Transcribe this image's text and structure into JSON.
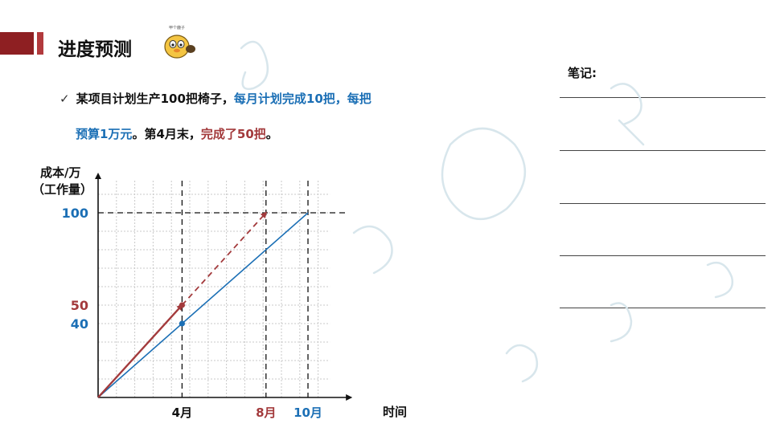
{
  "header": {
    "title": "进度预测"
  },
  "mascot": {
    "caption": "甲个鹿子"
  },
  "bullet": {
    "part1": "某项目计划生产100把椅子，",
    "part2": "每月计划完成10把，每把",
    "part3": "预算1万元",
    "part4": "。第4月末，",
    "part5": "完成了50把",
    "part6": "。"
  },
  "notes": {
    "title": "笔记:"
  },
  "chart_data": {
    "type": "line",
    "ylabel_line1": "成本/万",
    "ylabel_line2": "（工作量）",
    "xlabel": "时间",
    "x_ticks": [
      {
        "label": "4月",
        "x": 4,
        "color": "#111111"
      },
      {
        "label": "8月",
        "x": 8,
        "color": "#a33a3c"
      },
      {
        "label": "10月",
        "x": 10,
        "color": "#1b6fb5"
      }
    ],
    "y_ticks": [
      {
        "label": "100",
        "y": 100,
        "color": "#1b6fb5"
      },
      {
        "label": "50",
        "y": 50,
        "color": "#a33a3c"
      },
      {
        "label": "40",
        "y": 40,
        "color": "#1b6fb5"
      }
    ],
    "xlim": [
      0,
      11.5
    ],
    "ylim": [
      0,
      120
    ],
    "series": [
      {
        "points": [
          [
            0,
            0
          ],
          [
            10,
            100
          ]
        ],
        "style": "solid",
        "color": "#1b6fb5"
      },
      {
        "points": [
          [
            0,
            0
          ],
          [
            4,
            50
          ]
        ],
        "style": "solid-arrow",
        "color": "#a33a3c"
      },
      {
        "points": [
          [
            4,
            50
          ],
          [
            8,
            100
          ]
        ],
        "style": "dashed-arrow",
        "color": "#a33a3c"
      }
    ],
    "markers": [
      {
        "x": 4,
        "y": 40,
        "color": "#1b6fb5"
      },
      {
        "x": 4,
        "y": 50,
        "color": "#a33a3c"
      }
    ],
    "grid": true
  }
}
